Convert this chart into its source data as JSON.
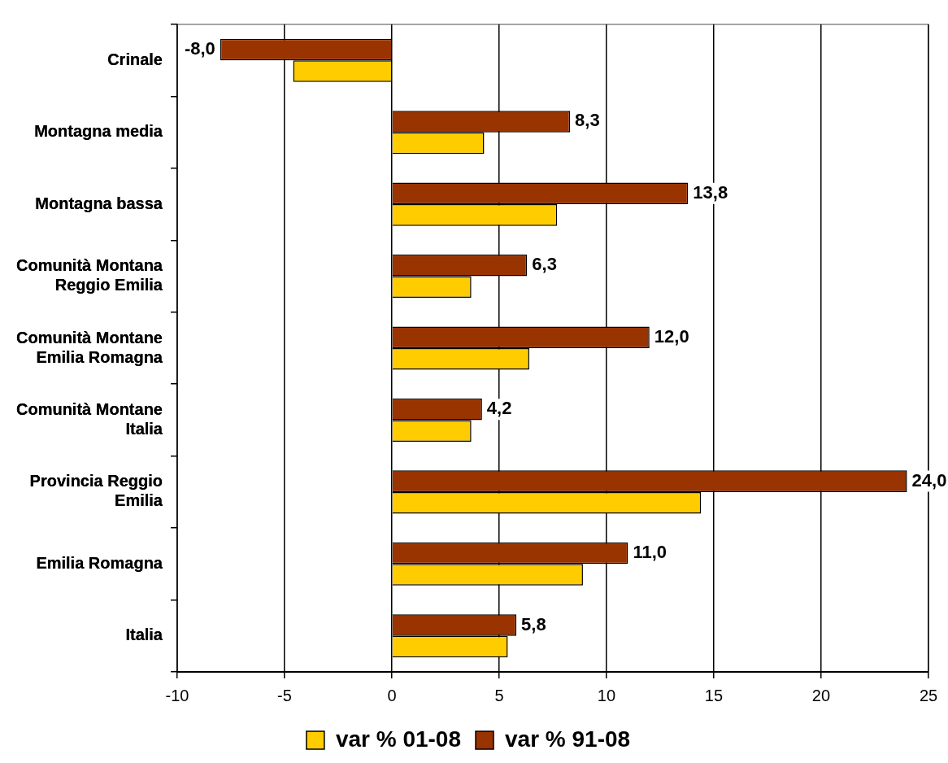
{
  "chart_data": {
    "type": "bar",
    "orientation": "horizontal",
    "categories": [
      "Crinale",
      "Montagna media",
      "Montagna bassa",
      "Comunità Montana Reggio Emilia",
      "Comunità Montane Emilia Romagna",
      "Comunità Montane Italia",
      "Provincia Reggio Emilia",
      "Emilia Romagna",
      "Italia"
    ],
    "series": [
      {
        "name": "var % 01-08",
        "color": "#ffcc00",
        "values": [
          -4.6,
          4.3,
          7.7,
          3.7,
          6.4,
          3.7,
          14.4,
          8.9,
          5.4
        ]
      },
      {
        "name": "var % 91-08",
        "color": "#993300",
        "values": [
          -8.0,
          8.3,
          13.8,
          6.3,
          12.0,
          4.2,
          24.0,
          11.0,
          5.8
        ],
        "value_labels": [
          "-8,0",
          "8,3",
          "13,8",
          "6,3",
          "12,0",
          "4,2",
          "24,0",
          "11,0",
          "5,8"
        ]
      }
    ],
    "xlim": [
      -10,
      25
    ],
    "xticks": [
      -10,
      -5,
      0,
      5,
      10,
      15,
      20,
      25
    ],
    "grid": "x",
    "legend": "bottom"
  }
}
